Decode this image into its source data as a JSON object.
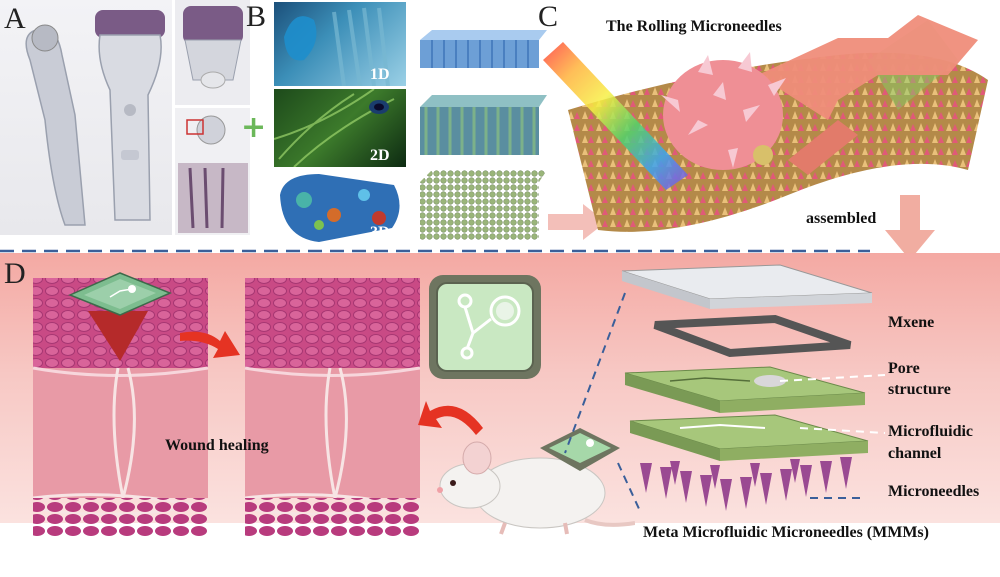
{
  "panels": {
    "a": "A",
    "b": "B",
    "c": "C",
    "d": "D"
  },
  "panel_b": {
    "label_1d": "1D",
    "label_2d": "2D",
    "label_3d": "3D"
  },
  "panel_c": {
    "title": "The Rolling Microneedles",
    "assembled": "assembled"
  },
  "panel_d": {
    "wound_healing": "Wound healing",
    "layers": {
      "mxene": "Mxene",
      "pore_line1": "Pore",
      "pore_line2": "structure",
      "channel_line1": "Microfluidic",
      "channel_line2": "channel",
      "microneedles": "Microneedles"
    },
    "device_name": "Meta Microfluidic Microneedles (MMMs)"
  },
  "colors": {
    "divider": "#3a5f9a",
    "arrow_red": "#e53323",
    "plus_green": "#6cb85a",
    "skin_pink": "#e9a4ad",
    "dermis_magenta": "#c0457e",
    "needle_purple": "#9a4a92",
    "bg_pink": "#f3c4c0"
  }
}
